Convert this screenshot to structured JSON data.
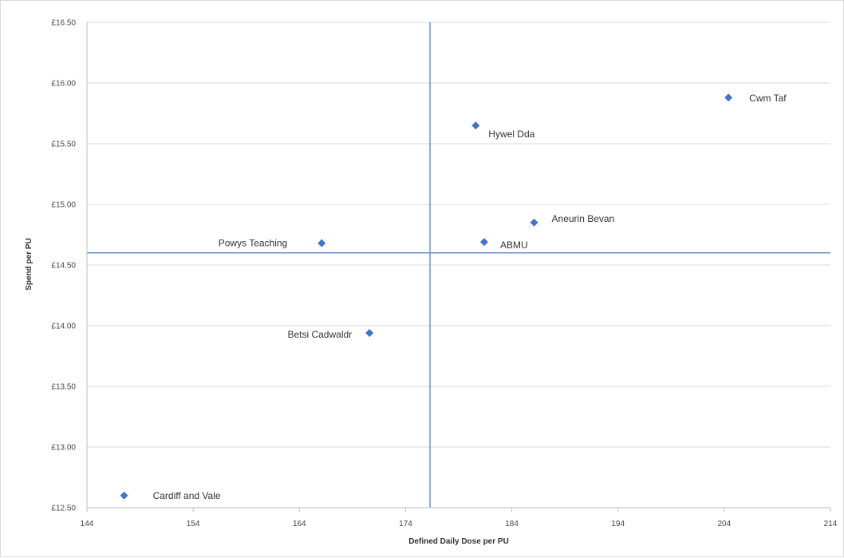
{
  "chart_data": {
    "type": "scatter",
    "title": "",
    "xlabel": "Defined Daily Dose per PU",
    "ylabel": "Spend per PU",
    "xlim": [
      144,
      214
    ],
    "ylim": [
      12.5,
      16.5
    ],
    "x_ticks": [
      "144",
      "154",
      "164",
      "174",
      "184",
      "194",
      "204",
      "214"
    ],
    "y_ticks": [
      "£12.50",
      "£13.00",
      "£13.50",
      "£14.00",
      "£14.50",
      "£15.00",
      "£15.50",
      "£16.00",
      "£16.50"
    ],
    "grid": true,
    "marker_color": "#4472c4",
    "reference_line_color": "#6a8fc9",
    "reference_lines": {
      "x": 176.3,
      "y": 14.6
    },
    "points": [
      {
        "name": "Cwm Taf",
        "x": 204.4,
        "y": 15.88
      },
      {
        "name": "Hywel Dda",
        "x": 180.6,
        "y": 15.65
      },
      {
        "name": "Aneurin Bevan",
        "x": 186.1,
        "y": 14.85
      },
      {
        "name": "ABMU",
        "x": 181.4,
        "y": 14.69
      },
      {
        "name": "Powys Teaching",
        "x": 166.1,
        "y": 14.68
      },
      {
        "name": "Betsi Cadwaldr",
        "x": 170.6,
        "y": 13.94
      },
      {
        "name": "Cardiff and Vale",
        "x": 147.5,
        "y": 12.6
      }
    ]
  }
}
